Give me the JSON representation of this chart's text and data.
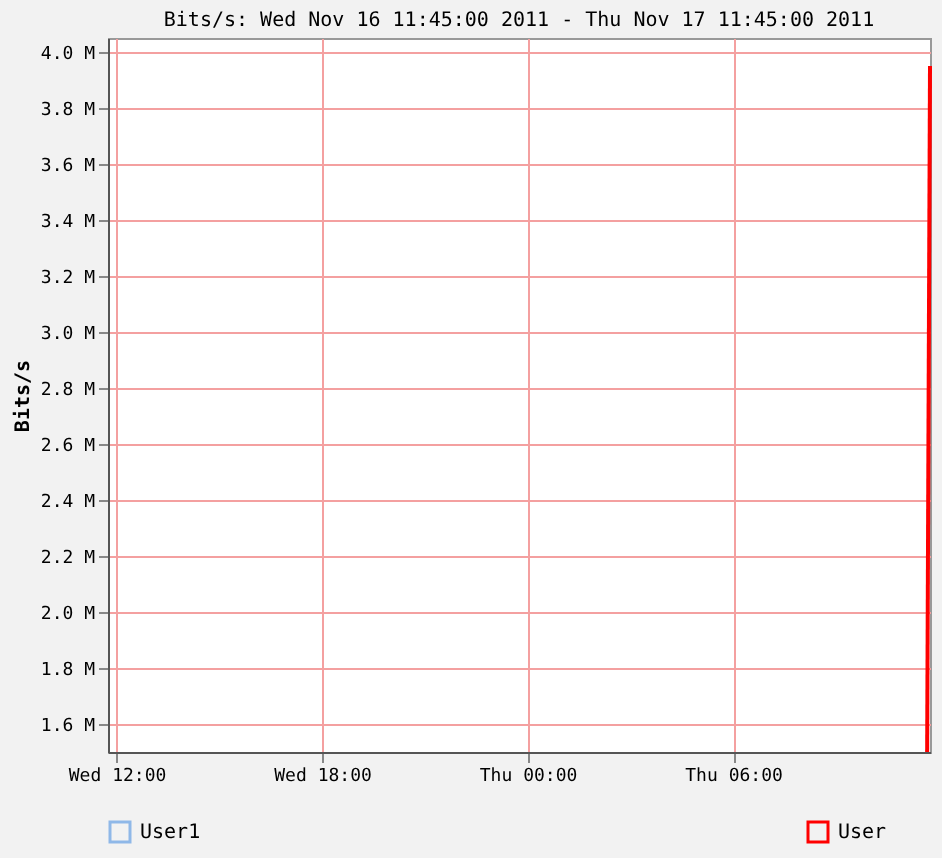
{
  "chart_data": {
    "type": "line",
    "title": "Bits/s: Wed Nov 16 11:45:00 2011 - Thu Nov 17 11:45:00 2011",
    "ylabel": "Bits/s",
    "x": [
      "2011-11-17T11:40",
      "2011-11-17T11:45"
    ],
    "series": [
      {
        "name": "User1",
        "color": "#8fb8e8",
        "values": [
          null,
          null
        ]
      },
      {
        "name": "User",
        "color": "#ff0000",
        "values": [
          1.5,
          3.95
        ]
      }
    ],
    "xlim": [
      "2011-11-16T11:45",
      "2011-11-17T11:45"
    ],
    "xticks": [
      {
        "value": "2011-11-16T12:00",
        "label": "Wed 12:00"
      },
      {
        "value": "2011-11-16T18:00",
        "label": "Wed 18:00"
      },
      {
        "value": "2011-11-17T00:00",
        "label": "Thu 00:00"
      },
      {
        "value": "2011-11-17T06:00",
        "label": "Thu 06:00"
      }
    ],
    "ylim": [
      1.5,
      4.05
    ],
    "yticks": [
      {
        "value": 1.6,
        "label": "1.6 M"
      },
      {
        "value": 1.8,
        "label": "1.8 M"
      },
      {
        "value": 2.0,
        "label": "2.0 M"
      },
      {
        "value": 2.2,
        "label": "2.2 M"
      },
      {
        "value": 2.4,
        "label": "2.4 M"
      },
      {
        "value": 2.6,
        "label": "2.6 M"
      },
      {
        "value": 2.8,
        "label": "2.8 M"
      },
      {
        "value": 3.0,
        "label": "3.0 M"
      },
      {
        "value": 3.2,
        "label": "3.2 M"
      },
      {
        "value": 3.4,
        "label": "3.4 M"
      },
      {
        "value": 3.6,
        "label": "3.6 M"
      },
      {
        "value": 3.8,
        "label": "3.8 M"
      },
      {
        "value": 4.0,
        "label": "4.0 M"
      }
    ],
    "grid": true,
    "legend": "bottom",
    "line_style": "solid",
    "marker": "none"
  }
}
